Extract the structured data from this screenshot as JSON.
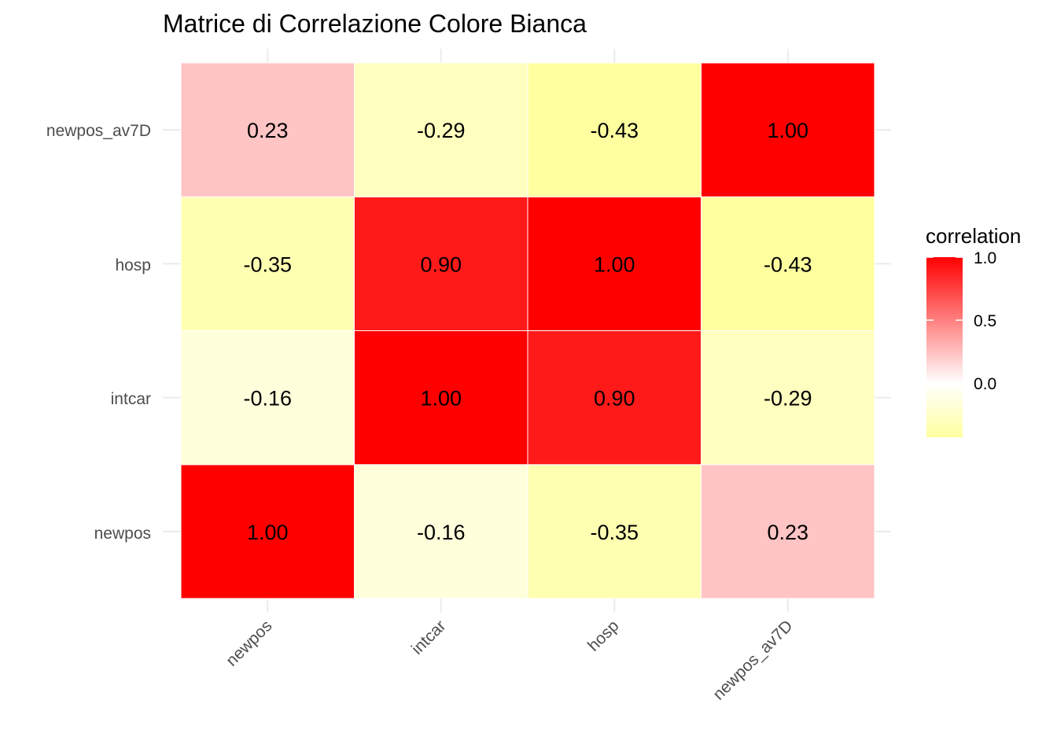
{
  "chart_data": {
    "type": "heatmap",
    "title": "Matrice di Correlazione Colore Bianca",
    "x_categories": [
      "newpos",
      "intcar",
      "hosp",
      "newpos_av7D"
    ],
    "y_categories": [
      "newpos",
      "intcar",
      "hosp",
      "newpos_av7D"
    ],
    "matrix": [
      [
        1.0,
        -0.16,
        -0.35,
        0.23
      ],
      [
        -0.16,
        1.0,
        0.9,
        -0.29
      ],
      [
        -0.35,
        0.9,
        1.0,
        -0.43
      ],
      [
        0.23,
        -0.29,
        -0.43,
        1.0
      ]
    ],
    "labels": [
      [
        "1.00",
        "-0.16",
        "-0.35",
        "0.23"
      ],
      [
        "-0.16",
        "1.00",
        "0.90",
        "-0.29"
      ],
      [
        "-0.35",
        "0.90",
        "1.00",
        "-0.43"
      ],
      [
        "0.23",
        "-0.29",
        "-0.43",
        "1.00"
      ]
    ],
    "legend": {
      "title": "correlation",
      "ticks": [
        "1.0",
        "0.5",
        "0.0"
      ],
      "tick_values": [
        1.0,
        0.5,
        0.0
      ],
      "range": [
        -0.43,
        1.0
      ],
      "placement": "right",
      "low_color": "#ffffa0",
      "mid_color": "#ffffff",
      "high_color": "#ff0000"
    },
    "xlabel": "",
    "ylabel": "",
    "grid": true
  }
}
